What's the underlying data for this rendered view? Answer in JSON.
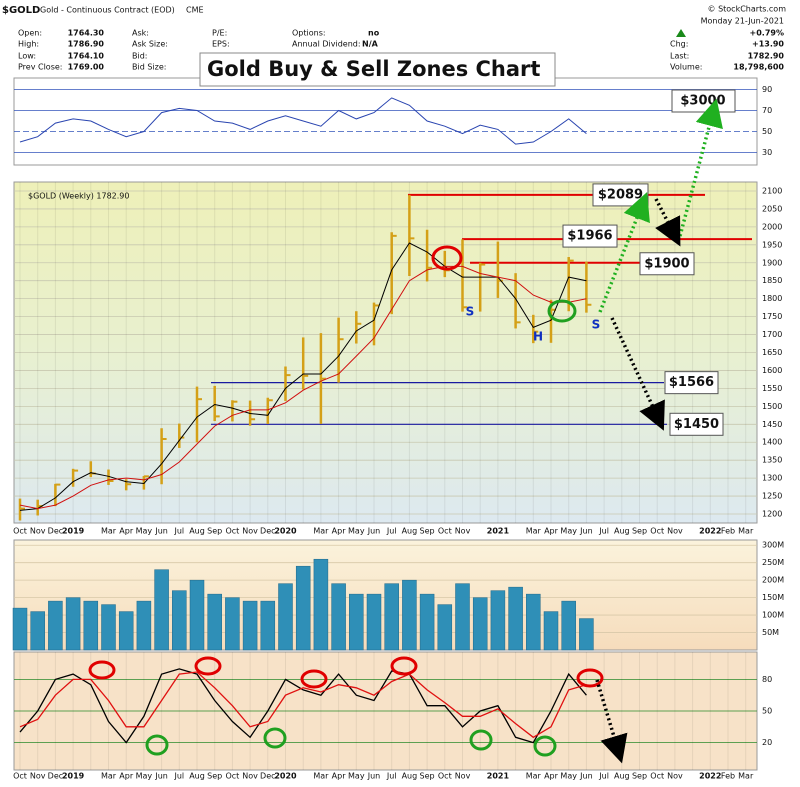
{
  "header": {
    "symbol": "$GOLD",
    "name": "Gold - Continuous Contract (EOD)",
    "exchange": "CME",
    "copyright": "© StockCharts.com",
    "open_label": "Open:",
    "open": "1764.30",
    "high_label": "High:",
    "high": "1786.90",
    "low_label": "Low:",
    "low": "1764.10",
    "prev_label": "Prev Close:",
    "prev": "1769.00",
    "ask_label": "Ask:",
    "ask_size_label": "Ask Size:",
    "bid_label": "Bid:",
    "bid_size_label": "Bid Size:",
    "pe_label": "P/E:",
    "eps_label": "EPS:",
    "options_label": "Options:",
    "options": "no",
    "dividend_label": "Annual Dividend:",
    "dividend": "N/A",
    "date": "Monday  21-Jun-2021",
    "change_pct": "+0.79%",
    "chg_label": "Chg:",
    "chg": "+13.90",
    "last_label": "Last:",
    "last": "1782.90",
    "volume_label": "Volume:",
    "volume": "18,798,600",
    "title": "Gold Buy & Sell Zones Chart"
  },
  "chart_data": [
    {
      "type": "line",
      "color": "#2a45b0",
      "values": [
        40,
        45,
        58,
        62,
        60,
        52,
        45,
        50,
        68,
        72,
        70,
        60,
        58,
        52,
        60,
        65,
        60,
        55,
        70,
        62,
        68,
        82,
        75,
        60,
        55,
        48,
        56,
        52,
        38,
        40,
        50,
        62,
        48,
        null,
        null,
        null,
        null,
        null,
        null,
        null,
        null,
        null
      ],
      "ylim": [
        19,
        101
      ],
      "yticks": [
        30,
        50,
        70,
        90
      ]
    },
    {
      "type": "ohlc",
      "legend": "$GOLD (Weekly) 1782.90",
      "color": "#d4a017",
      "categories": [
        "Oct",
        "Nov",
        "Dec",
        "2019",
        null,
        "Mar",
        "Apr",
        "May",
        "Jun",
        "Jul",
        "Aug",
        "Sep",
        "Oct",
        "Nov",
        "Dec",
        "2020",
        null,
        "Mar",
        "Apr",
        "May",
        "Jun",
        "Jul",
        "Aug",
        "Sep",
        "Oct",
        "Nov",
        null,
        "2021",
        null,
        "Mar",
        "Apr",
        "May",
        "Jun",
        "Jul",
        "Aug",
        "Sep",
        "Oct",
        "Nov",
        null,
        "2022",
        "Feb",
        "Mar"
      ],
      "high": [
        1243,
        1240,
        1284,
        1326,
        1347,
        1324,
        1297,
        1306,
        1439,
        1452,
        1555,
        1557,
        1517,
        1516,
        1524,
        1611,
        1692,
        1704,
        1747,
        1765,
        1789,
        1985,
        2089,
        1992,
        1933,
        1965,
        1900,
        1959,
        1871,
        1755,
        1797,
        1916,
        1903,
        null,
        null,
        null,
        null,
        null,
        null,
        null,
        null,
        null
      ],
      "low": [
        1182,
        1196,
        1222,
        1276,
        1303,
        1281,
        1266,
        1268,
        1283,
        1384,
        1400,
        1459,
        1458,
        1446,
        1451,
        1515,
        1547,
        1451,
        1566,
        1675,
        1670,
        1757,
        1863,
        1848,
        1860,
        1764,
        1764,
        1802,
        1717,
        1676,
        1677,
        1765,
        1761,
        null,
        null,
        null,
        null,
        null,
        null,
        null,
        null,
        null
      ],
      "close": [
        1215,
        1222,
        1282,
        1321,
        1313,
        1292,
        1283,
        1305,
        1409,
        1413,
        1520,
        1472,
        1513,
        1464,
        1517,
        1587,
        1585,
        1577,
        1687,
        1730,
        1781,
        1975,
        1968,
        1886,
        1879,
        1776,
        1895,
        1850,
        1734,
        1708,
        1769,
        1906,
        1783,
        null,
        null,
        null,
        null,
        null,
        null,
        null,
        null,
        null
      ],
      "moving_averages": [
        {
          "color": "#000000",
          "values": [
            1210,
            1215,
            1245,
            1290,
            1315,
            1305,
            1290,
            1285,
            1340,
            1405,
            1470,
            1505,
            1495,
            1480,
            1475,
            1550,
            1590,
            1590,
            1640,
            1710,
            1740,
            1880,
            1955,
            1930,
            1890,
            1860,
            1860,
            1860,
            1800,
            1720,
            1740,
            1860,
            1850,
            null,
            null,
            null,
            null,
            null,
            null,
            null,
            null,
            null
          ]
        },
        {
          "color": "#d01010",
          "values": [
            1225,
            1215,
            1225,
            1250,
            1280,
            1295,
            1300,
            1295,
            1310,
            1345,
            1395,
            1445,
            1475,
            1490,
            1490,
            1510,
            1545,
            1570,
            1590,
            1640,
            1690,
            1770,
            1850,
            1880,
            1890,
            1890,
            1870,
            1860,
            1850,
            1810,
            1790,
            1790,
            1800,
            null,
            null,
            null,
            null,
            null,
            null,
            null,
            null,
            null
          ]
        }
      ],
      "levels": [
        {
          "value": 2089,
          "label": "$2089",
          "color": "#e00000"
        },
        {
          "value": 1966,
          "label": "$1966",
          "color": "#e00000"
        },
        {
          "value": 1900,
          "label": "$1900",
          "color": "#e00000"
        },
        {
          "value": 1566,
          "label": "$1566",
          "color": "#1a1aa0"
        },
        {
          "value": 1450,
          "label": "$1450",
          "color": "#1a1aa0"
        }
      ],
      "target": "$3000",
      "pattern_labels": [
        "S",
        "H",
        "S"
      ],
      "ylim": [
        1175,
        2125
      ],
      "yticks": [
        1200,
        1250,
        1300,
        1350,
        1400,
        1450,
        1500,
        1550,
        1600,
        1650,
        1700,
        1750,
        1800,
        1850,
        1900,
        1950,
        2000,
        2050,
        2100
      ]
    },
    {
      "type": "bar",
      "color": "#2f8fb7",
      "values": [
        120000000,
        110000000,
        140000000,
        150000000,
        140000000,
        130000000,
        110000000,
        140000000,
        230000000,
        170000000,
        200000000,
        160000000,
        150000000,
        140000000,
        140000000,
        190000000,
        240000000,
        260000000,
        190000000,
        160000000,
        160000000,
        190000000,
        200000000,
        160000000,
        130000000,
        190000000,
        150000000,
        170000000,
        180000000,
        160000000,
        110000000,
        140000000,
        90000000,
        null,
        null,
        null,
        null,
        null,
        null,
        null,
        null,
        null
      ],
      "ylim": [
        0,
        315000000
      ],
      "yticks": [
        {
          "value": 50000000,
          "label": "50M"
        },
        {
          "value": 100000000,
          "label": "100M"
        },
        {
          "value": 150000000,
          "label": "150M"
        },
        {
          "value": 200000000,
          "label": "200M"
        },
        {
          "value": 250000000,
          "label": "250M"
        },
        {
          "value": 300000000,
          "label": "300M"
        }
      ]
    },
    {
      "type": "line",
      "categories": [
        "Oct",
        "Nov",
        "Dec",
        "2019",
        null,
        "Mar",
        "Apr",
        "May",
        "Jun",
        "Jul",
        "Aug",
        "Sep",
        "Oct",
        "Nov",
        "Dec",
        "2020",
        null,
        "Mar",
        "Apr",
        "May",
        "Jun",
        "Jul",
        "Aug",
        "Sep",
        "Oct",
        "Nov",
        null,
        "2021",
        null,
        "Mar",
        "Apr",
        "May",
        "Jun",
        "Jul",
        "Aug",
        "Sep",
        "Oct",
        "Nov",
        null,
        "2022",
        "Feb",
        "Mar"
      ],
      "series": [
        {
          "color": "#000000",
          "values": [
            30,
            50,
            80,
            85,
            75,
            40,
            20,
            45,
            85,
            90,
            85,
            60,
            40,
            25,
            50,
            80,
            70,
            65,
            85,
            65,
            60,
            88,
            85,
            55,
            55,
            35,
            50,
            55,
            25,
            20,
            50,
            85,
            65,
            null,
            null,
            null,
            null,
            null,
            null,
            null,
            null,
            null
          ]
        },
        {
          "color": "#e01010",
          "values": [
            35,
            42,
            65,
            80,
            80,
            60,
            35,
            35,
            60,
            85,
            87,
            72,
            55,
            35,
            40,
            65,
            72,
            68,
            75,
            72,
            65,
            78,
            85,
            70,
            58,
            45,
            45,
            52,
            38,
            25,
            35,
            70,
            75,
            null,
            null,
            null,
            null,
            null,
            null,
            null,
            null,
            null
          ]
        }
      ],
      "ylim": [
        -6,
        106
      ],
      "yticks": [
        20,
        50,
        80
      ]
    }
  ]
}
